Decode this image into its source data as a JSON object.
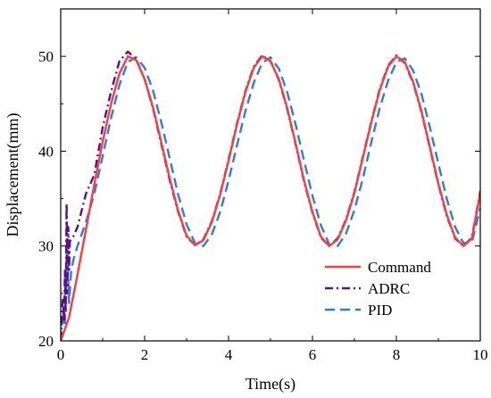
{
  "chart_data": {
    "type": "line",
    "title": "",
    "xlabel": "Time(s)",
    "ylabel": "Displacement(mm)",
    "xlim": [
      0,
      10
    ],
    "ylim": [
      20,
      55
    ],
    "x_ticks": [
      0,
      2,
      4,
      6,
      8,
      10
    ],
    "y_ticks": [
      20,
      30,
      40,
      50
    ],
    "x_tick_labels": [
      "0",
      "2",
      "4",
      "6",
      "8",
      "10"
    ],
    "y_tick_labels": [
      "20",
      "30",
      "40",
      "50"
    ],
    "grid": false,
    "legend_position": "bottom-right",
    "series": [
      {
        "name": "Command",
        "color": "#ff3b3b",
        "style": "solid",
        "x": [
          0,
          0.2,
          0.4,
          0.6,
          0.8,
          1.0,
          1.2,
          1.4,
          1.6,
          1.8,
          2.0,
          2.2,
          2.4,
          2.6,
          2.8,
          3.0,
          3.2,
          3.4,
          3.6,
          3.8,
          4.0,
          4.2,
          4.4,
          4.6,
          4.8,
          5.0,
          5.2,
          5.4,
          5.6,
          5.8,
          6.0,
          6.2,
          6.4,
          6.6,
          6.8,
          7.0,
          7.2,
          7.4,
          7.6,
          7.8,
          8.0,
          8.2,
          8.4,
          8.6,
          8.8,
          9.0,
          9.2,
          9.4,
          9.6,
          9.8,
          10.0
        ],
        "y": [
          20.0,
          22.5,
          27.0,
          31.7,
          36.5,
          41.0,
          45.0,
          48.2,
          50.0,
          49.6,
          47.6,
          44.6,
          40.9,
          37.1,
          33.7,
          31.1,
          30.1,
          30.6,
          32.5,
          35.4,
          39.0,
          42.8,
          46.2,
          48.8,
          50.0,
          49.5,
          47.6,
          44.5,
          40.8,
          36.9,
          33.6,
          31.0,
          30.0,
          30.7,
          32.7,
          35.6,
          39.3,
          43.0,
          46.4,
          48.9,
          50.0,
          49.4,
          47.3,
          44.2,
          40.4,
          36.6,
          33.3,
          30.9,
          30.0,
          30.8,
          35.6
        ]
      },
      {
        "name": "ADRC",
        "color": "#5b0f8f",
        "style": "dashdot",
        "x": [
          0,
          0.05,
          0.08,
          0.1,
          0.12,
          0.14,
          0.16,
          0.18,
          0.2,
          0.22,
          0.3,
          0.4,
          0.6,
          0.8,
          1.0,
          1.2,
          1.4,
          1.6,
          1.8,
          2.0,
          2.2,
          2.4,
          2.6,
          2.8,
          3.0,
          3.2,
          3.4,
          3.6,
          3.8,
          4.0,
          4.2,
          4.4,
          4.6,
          4.8,
          5.0,
          5.2,
          5.4,
          5.6,
          5.8,
          6.0,
          6.2,
          6.4,
          6.6,
          6.8,
          7.0,
          7.2,
          7.4,
          7.6,
          7.8,
          8.0,
          8.2,
          8.4,
          8.6,
          8.8,
          9.0,
          9.2,
          9.4,
          9.6,
          9.8,
          10.0
        ],
        "y": [
          20.0,
          24.5,
          22.0,
          27.5,
          23.0,
          34.5,
          25.0,
          32.0,
          27.5,
          30.5,
          31.0,
          32.0,
          35.5,
          37.5,
          42.5,
          46.3,
          49.5,
          50.5,
          49.7,
          47.6,
          44.5,
          40.7,
          36.9,
          33.6,
          31.0,
          30.1,
          30.7,
          32.6,
          35.5,
          39.1,
          42.9,
          46.3,
          48.9,
          50.1,
          49.5,
          47.5,
          44.4,
          40.7,
          36.8,
          33.5,
          30.9,
          30.0,
          30.8,
          32.8,
          35.7,
          39.4,
          43.1,
          46.5,
          49.0,
          50.1,
          49.3,
          47.2,
          44.1,
          40.3,
          36.5,
          33.2,
          30.8,
          30.0,
          30.9,
          35.8
        ]
      },
      {
        "name": "PID",
        "color": "#2d7de0",
        "style": "dashed",
        "x": [
          0,
          0.05,
          0.1,
          0.15,
          0.2,
          0.25,
          0.3,
          0.4,
          0.6,
          0.8,
          1.0,
          1.2,
          1.4,
          1.6,
          1.8,
          2.0,
          2.2,
          2.4,
          2.6,
          2.8,
          3.0,
          3.2,
          3.4,
          3.6,
          3.8,
          4.0,
          4.2,
          4.4,
          4.6,
          4.8,
          5.0,
          5.2,
          5.4,
          5.6,
          5.8,
          6.0,
          6.2,
          6.4,
          6.6,
          6.8,
          7.0,
          7.2,
          7.4,
          7.6,
          7.8,
          8.0,
          8.2,
          8.4,
          8.6,
          8.8,
          9.0,
          9.2,
          9.4,
          9.6,
          9.8,
          10.0
        ],
        "y": [
          20.0,
          23.0,
          21.5,
          30.5,
          24.0,
          27.5,
          28.5,
          30.0,
          32.5,
          35.5,
          39.5,
          43.5,
          47.0,
          49.4,
          49.9,
          48.8,
          46.4,
          43.0,
          39.2,
          35.4,
          32.3,
          30.3,
          30.0,
          31.2,
          33.6,
          36.9,
          40.6,
          44.2,
          47.2,
          49.3,
          49.9,
          48.7,
          46.2,
          42.8,
          39.0,
          35.3,
          32.2,
          30.2,
          30.0,
          31.3,
          33.8,
          37.1,
          40.9,
          44.5,
          47.4,
          49.4,
          49.8,
          48.5,
          46.0,
          42.5,
          38.7,
          35.0,
          32.0,
          30.3,
          30.4,
          34.0
        ]
      }
    ]
  }
}
